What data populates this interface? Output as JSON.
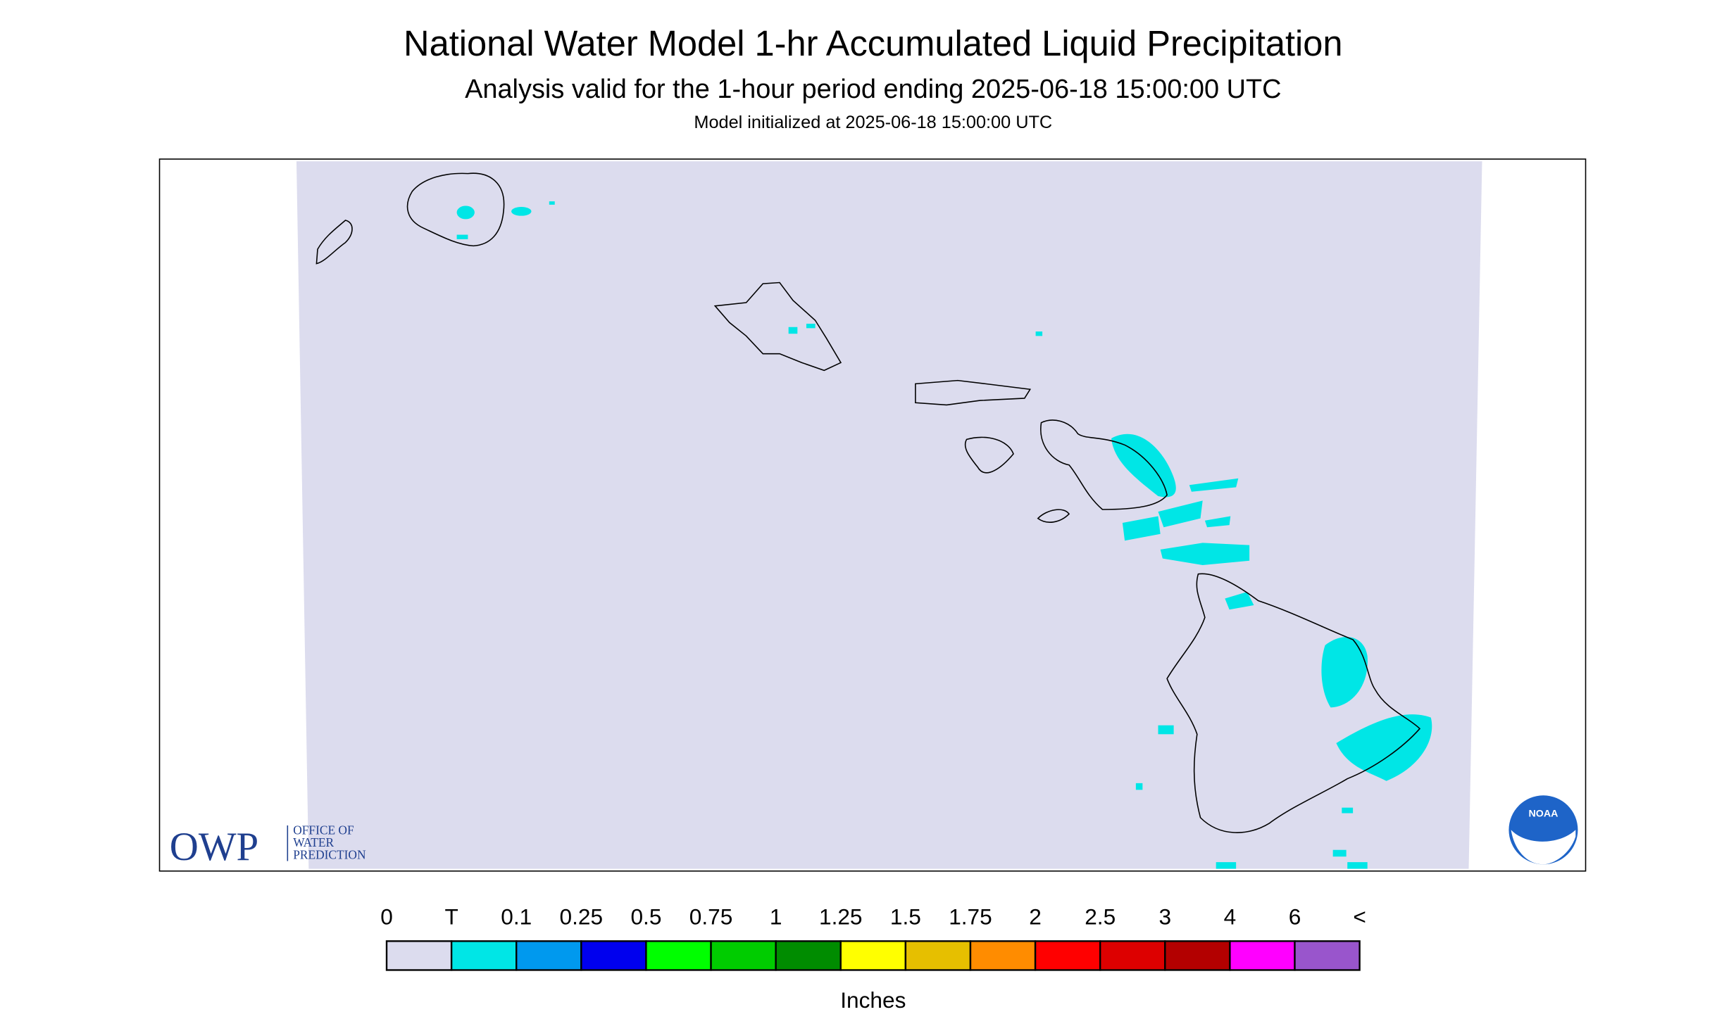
{
  "header": {
    "title": "National Water Model 1-hr Accumulated Liquid Precipitation",
    "subtitle": "Analysis valid for the 1-hour period ending 2025-06-18 15:00:00 UTC",
    "note": "Model initialized at 2025-06-18 15:00:00 UTC"
  },
  "logo": {
    "owp": "OWP",
    "lines": [
      "OFFICE OF",
      "WATER",
      "PREDICTION"
    ],
    "noaa": "NOAA"
  },
  "legend": {
    "labels": [
      "0",
      "T",
      "0.1",
      "0.25",
      "0.5",
      "0.75",
      "1",
      "1.25",
      "1.5",
      "1.75",
      "2",
      "2.5",
      "3",
      "4",
      "6",
      "<"
    ],
    "colors": [
      "#dcdcee",
      "#00e6e6",
      "#0099ee",
      "#0000ee",
      "#00ff00",
      "#00cc00",
      "#008c00",
      "#ffff00",
      "#e6bf00",
      "#ff8c00",
      "#ff0000",
      "#dd0000",
      "#b30000",
      "#ff00ff",
      "#9955cc"
    ],
    "unit": "Inches"
  }
}
